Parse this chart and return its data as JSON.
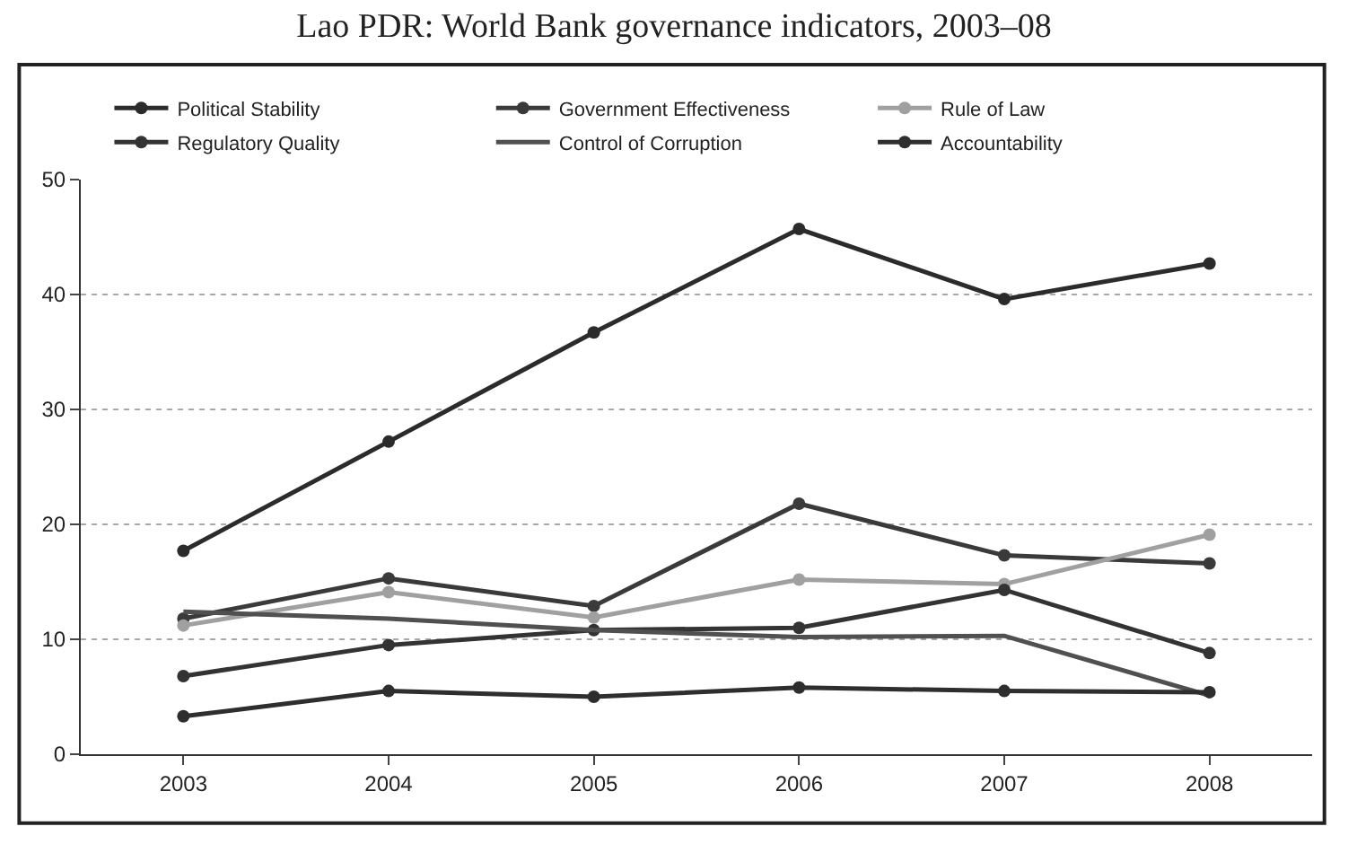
{
  "chart_data": {
    "type": "line",
    "title": "Lao PDR: World Bank governance indicators, 2003–08",
    "categories": [
      "2003",
      "2004",
      "2005",
      "2006",
      "2007",
      "2008"
    ],
    "series": [
      {
        "name": "Political Stability",
        "color": "#2b2b2b",
        "marker": "circle",
        "values": [
          17.7,
          27.2,
          36.7,
          45.7,
          39.6,
          42.7
        ]
      },
      {
        "name": "Government Effectiveness",
        "color": "#3a3a3a",
        "marker": "circle",
        "values": [
          11.8,
          15.3,
          12.9,
          21.8,
          17.3,
          16.6
        ]
      },
      {
        "name": "Rule of Law",
        "color": "#a0a0a0",
        "marker": "circle",
        "values": [
          11.2,
          14.1,
          11.9,
          15.2,
          14.8,
          19.1
        ]
      },
      {
        "name": "Regulatory Quality",
        "color": "#333333",
        "marker": "circle",
        "values": [
          6.8,
          9.5,
          10.8,
          11.0,
          14.3,
          8.8
        ]
      },
      {
        "name": "Control of Corruption",
        "color": "#505050",
        "marker": "none",
        "values": [
          12.4,
          11.8,
          10.8,
          10.2,
          10.3,
          5.1
        ]
      },
      {
        "name": "Accountability",
        "color": "#2e2e2e",
        "marker": "circle",
        "values": [
          3.3,
          5.5,
          5.0,
          5.8,
          5.5,
          5.4
        ]
      }
    ],
    "ylim": [
      0,
      50
    ],
    "yticks": [
      0,
      10,
      20,
      30,
      40,
      50
    ],
    "grid": "y",
    "legend": "top",
    "line_style": "solid"
  }
}
